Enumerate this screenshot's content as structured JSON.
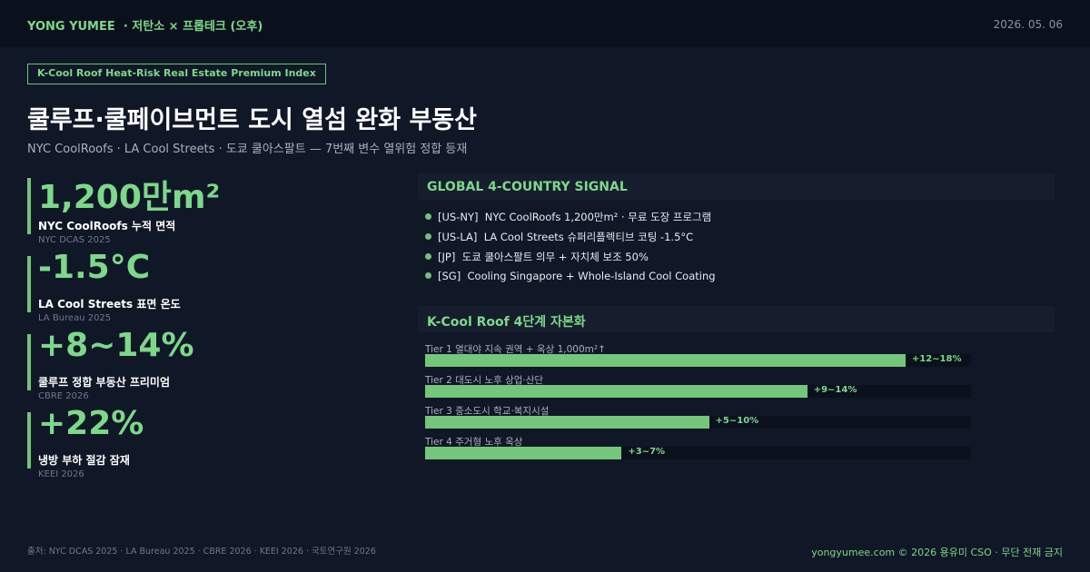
{
  "header": {
    "brand": "YONG YUMEE",
    "tagline": "· 저탄소 × 프롭테크 (오후)",
    "date": "2026. 05. 06"
  },
  "badge": "K-Cool Roof Heat-Risk Real Estate Premium Index",
  "title": "쿨루프·쿨페이브먼트 도시 열섬 완화 부동산",
  "subtitle": "NYC CoolRoofs · LA Cool Streets · 도쿄 쿨아스팔트 — 7번째 변수 열위험 정합 등재",
  "stats": [
    {
      "value": "1,200만m²",
      "label": "NYC CoolRoofs 누적 면적",
      "source": "NYC DCAS 2025"
    },
    {
      "value": "-1.5°C",
      "label": "LA Cool Streets 표면 온도",
      "source": "LA Bureau 2025"
    },
    {
      "value": "+8~14%",
      "label": "쿨루프 정합 부동산 프리미엄",
      "source": "CBRE 2026"
    },
    {
      "value": "+22%",
      "label": "냉방 부하 절감 잠재",
      "source": "KEEI 2026"
    }
  ],
  "signal": {
    "title": "GLOBAL 4-COUNTRY SIGNAL",
    "items": [
      {
        "tag": "[US-NY]",
        "text": "NYC CoolRoofs 1,200만m² · 무료 도장 프로그램"
      },
      {
        "tag": "[US-LA]",
        "text": "LA Cool Streets 슈퍼리플렉티브 코팅 -1.5°C"
      },
      {
        "tag": "[JP]",
        "text": "도쿄 쿨아스팔트 의무 + 자치체 보조 50%"
      },
      {
        "tag": "[SG]",
        "text": "Cooling Singapore + Whole-Island Cool Coating"
      }
    ]
  },
  "tiers": {
    "title": "K-Cool Roof 4단계 자본화",
    "items": [
      {
        "label": "Tier 1  열대야 지속 권역 + 옥상 1,000m²↑",
        "range": "+12~18%",
        "value": 88
      },
      {
        "label": "Tier 2  대도시 노후 상업·산단",
        "range": "+9~14%",
        "value": 70
      },
      {
        "label": "Tier 3  중소도시 학교·복지시설",
        "range": "+5~10%",
        "value": 52
      },
      {
        "label": "Tier 4  주거형 노후 옥상",
        "range": "+3~7%",
        "value": 36
      }
    ]
  },
  "footer": {
    "sources": "출처: NYC DCAS 2025 · LA Bureau 2025 · CBRE 2026 · KEEI 2026 · 국토연구원 2026",
    "credit": "yongyumee.com  ©  2026 용유미 CSO  ·  무단 전재 금지"
  }
}
